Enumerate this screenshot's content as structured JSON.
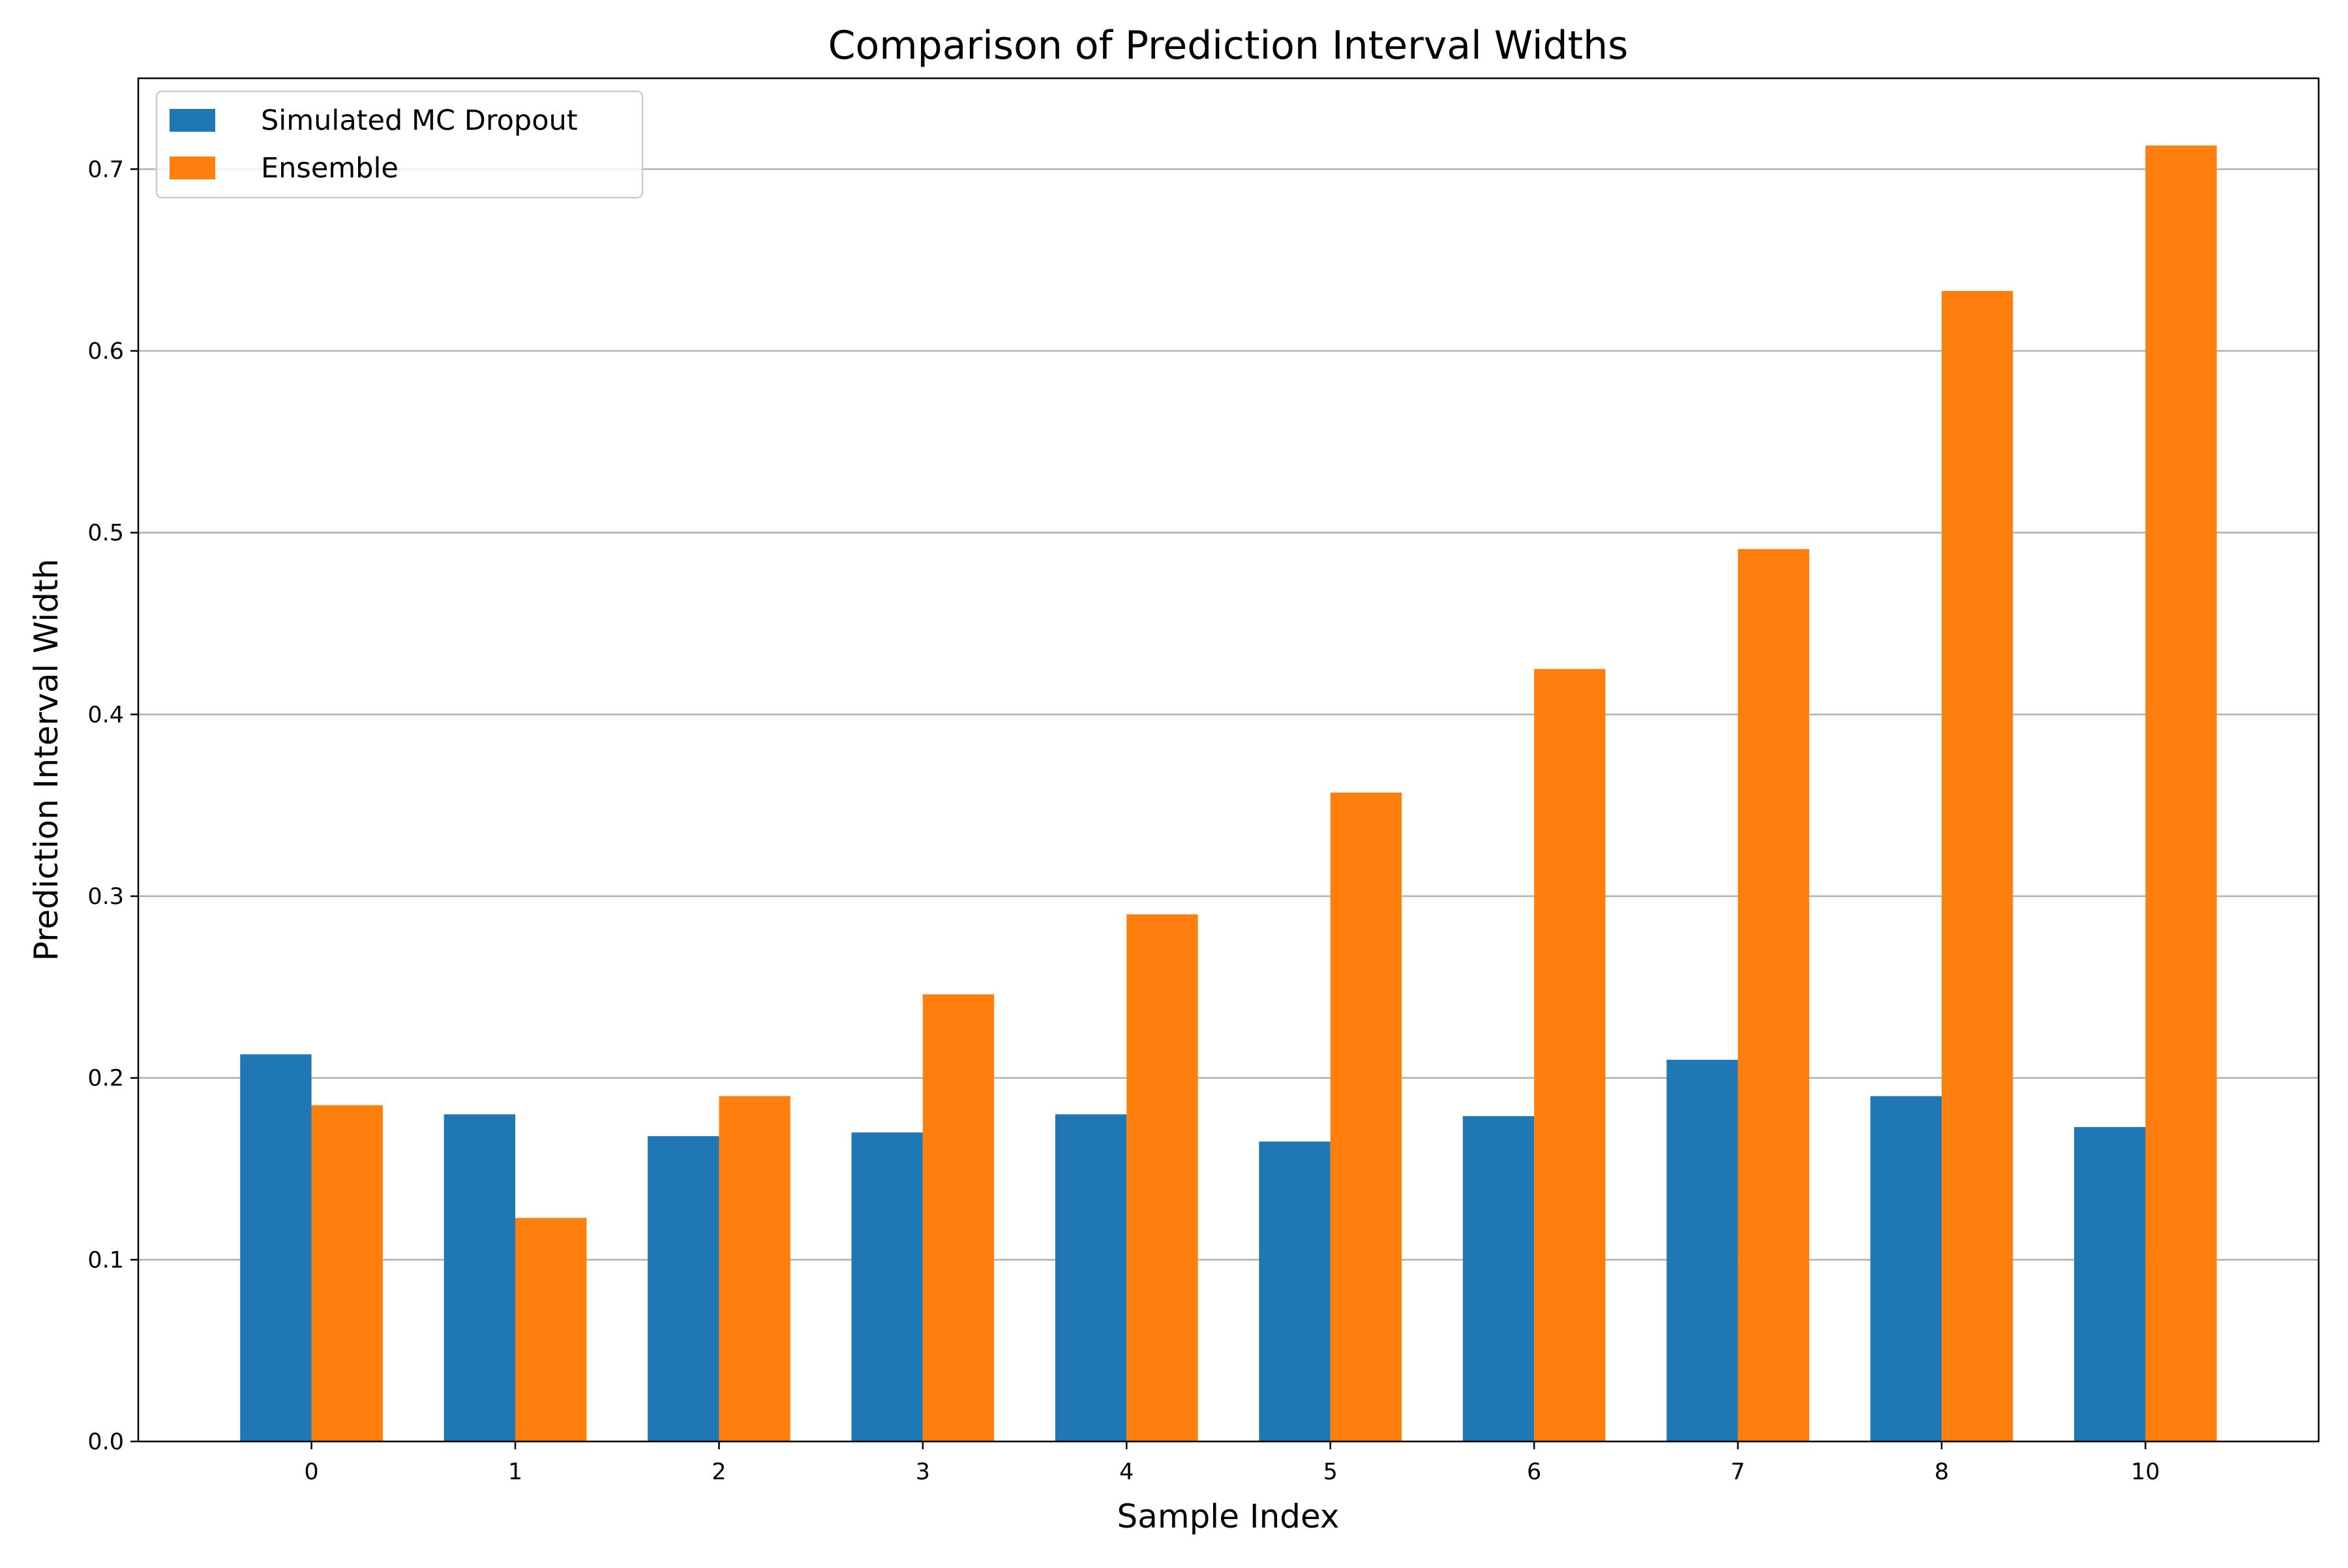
{
  "chart_data": {
    "type": "bar",
    "title": "Comparison of Prediction Interval Widths",
    "xlabel": "Sample Index",
    "ylabel": "Prediction Interval Width",
    "categories": [
      "0",
      "1",
      "2",
      "3",
      "4",
      "5",
      "6",
      "7",
      "8",
      "10"
    ],
    "series": [
      {
        "name": "Simulated MC Dropout",
        "color": "#1f77b4",
        "values": [
          0.213,
          0.18,
          0.168,
          0.17,
          0.18,
          0.165,
          0.179,
          0.21,
          0.19,
          0.173
        ]
      },
      {
        "name": "Ensemble",
        "color": "#ff7f0e",
        "values": [
          0.185,
          0.123,
          0.19,
          0.246,
          0.29,
          0.357,
          0.425,
          0.491,
          0.633,
          0.713
        ]
      }
    ],
    "ylim": [
      0,
      0.75
    ],
    "yticks": [
      "0.0",
      "0.1",
      "0.2",
      "0.3",
      "0.4",
      "0.5",
      "0.6",
      "0.7"
    ],
    "grid": "y-axis",
    "legend_position": "top-left"
  }
}
